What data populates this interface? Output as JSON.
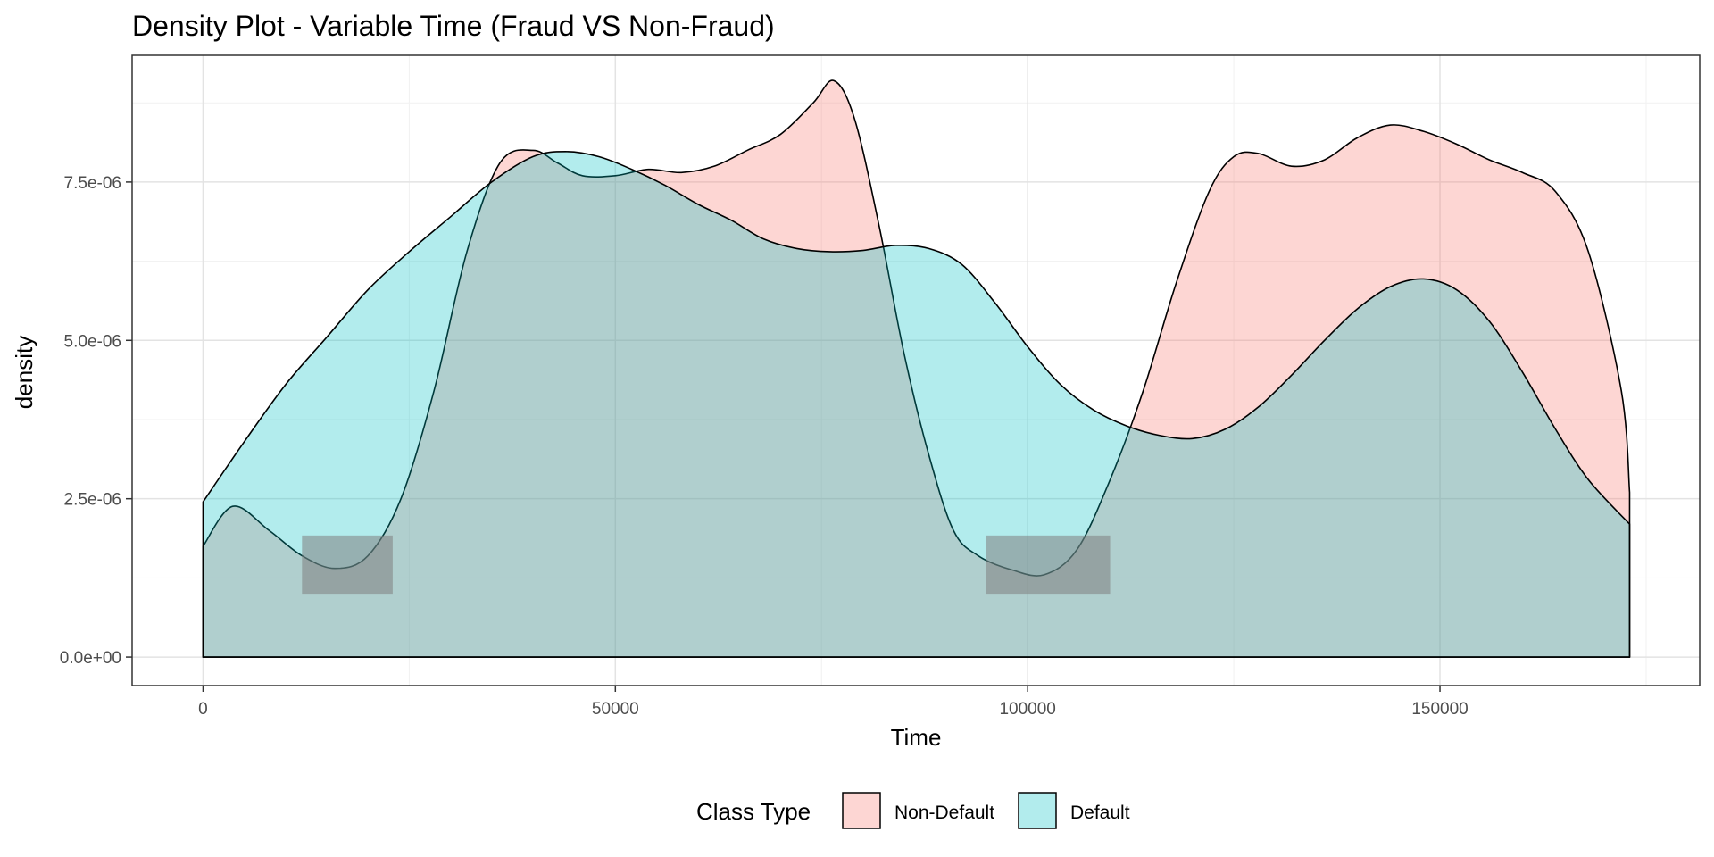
{
  "chart_data": {
    "type": "area",
    "title": "Density Plot - Variable Time (Fraud VS Non-Fraud)",
    "xlabel": "Time",
    "ylabel": "density",
    "xlim": [
      -8600,
      181500
    ],
    "ylim": [
      -4.5e-07,
      9.5e-06
    ],
    "x_ticks": [
      0,
      50000,
      100000,
      150000
    ],
    "x_tick_labels": [
      "0",
      "50000",
      "100000",
      "150000"
    ],
    "y_ticks": [
      0,
      2.5e-06,
      5e-06,
      7.5e-06
    ],
    "y_tick_labels": [
      "0.0e+00",
      "2.5e-06",
      "5.0e-06",
      "7.5e-06"
    ],
    "grid": true,
    "legend": {
      "title": "Class Type",
      "position": "bottom",
      "entries": [
        "Non-Default",
        "Default"
      ]
    },
    "series": [
      {
        "name": "Non-Default",
        "color": "#F8766D",
        "x": [
          0,
          3600,
          8000,
          12000,
          16000,
          20000,
          24000,
          28000,
          32000,
          36000,
          40000,
          43000,
          46000,
          50000,
          54000,
          58000,
          62000,
          66000,
          70000,
          74000,
          76500,
          79000,
          82000,
          85000,
          88000,
          91000,
          94000,
          98000,
          102000,
          106000,
          110000,
          114000,
          118000,
          122000,
          125000,
          128000,
          132000,
          136000,
          140000,
          144000,
          148000,
          152000,
          156000,
          160000,
          164000,
          168000,
          172000,
          173000
        ],
        "y": [
          1.75e-06,
          2.38e-06,
          2e-06,
          1.6e-06,
          1.4e-06,
          1.6e-06,
          2.5e-06,
          4.2e-06,
          6.4e-06,
          7.8e-06,
          8e-06,
          7.8e-06,
          7.6e-06,
          7.6e-06,
          7.7e-06,
          7.65e-06,
          7.75e-06,
          8e-06,
          8.25e-06,
          8.75e-06,
          9.1e-06,
          8.5e-06,
          6.8e-06,
          4.8e-06,
          3.2e-06,
          2e-06,
          1.6e-06,
          1.38e-06,
          1.3e-06,
          1.7e-06,
          2.8e-06,
          4.2e-06,
          5.9e-06,
          7.35e-06,
          7.9e-06,
          7.95e-06,
          7.75e-06,
          7.85e-06,
          8.2e-06,
          8.4e-06,
          8.3e-06,
          8.1e-06,
          7.85e-06,
          7.65e-06,
          7.35e-06,
          6.4e-06,
          4.2e-06,
          2.6e-06
        ]
      },
      {
        "name": "Default",
        "color": "#00BFC4",
        "x": [
          0,
          5000,
          10000,
          15000,
          20000,
          25000,
          30000,
          35000,
          40000,
          44000,
          48000,
          52000,
          56000,
          60000,
          64000,
          68000,
          72000,
          76000,
          80000,
          84000,
          88000,
          92000,
          96000,
          100000,
          104000,
          108000,
          112000,
          116000,
          120000,
          124000,
          128000,
          132000,
          136000,
          140000,
          144000,
          148000,
          152000,
          156000,
          160000,
          164000,
          168000,
          173000
        ],
        "y": [
          2.45e-06,
          3.4e-06,
          4.3e-06,
          5.05e-06,
          5.8e-06,
          6.4e-06,
          6.95e-06,
          7.5e-06,
          7.9e-06,
          7.98e-06,
          7.9e-06,
          7.7e-06,
          7.45e-06,
          7.15e-06,
          6.9e-06,
          6.6e-06,
          6.45e-06,
          6.4e-06,
          6.42e-06,
          6.5e-06,
          6.45e-06,
          6.2e-06,
          5.6e-06,
          4.9e-06,
          4.3e-06,
          3.9e-06,
          3.65e-06,
          3.5e-06,
          3.45e-06,
          3.6e-06,
          3.95e-06,
          4.45e-06,
          5e-06,
          5.5e-06,
          5.85e-06,
          5.97e-06,
          5.8e-06,
          5.3e-06,
          4.5e-06,
          3.6e-06,
          2.8e-06,
          2.1e-06
        ]
      }
    ],
    "highlight_boxes": [
      {
        "x": [
          12000,
          23000
        ],
        "y": [
          1e-06,
          1.92e-06
        ],
        "color": "#808080"
      },
      {
        "x": [
          95000,
          110000
        ],
        "y": [
          1e-06,
          1.92e-06
        ],
        "color": "#808080"
      }
    ]
  }
}
